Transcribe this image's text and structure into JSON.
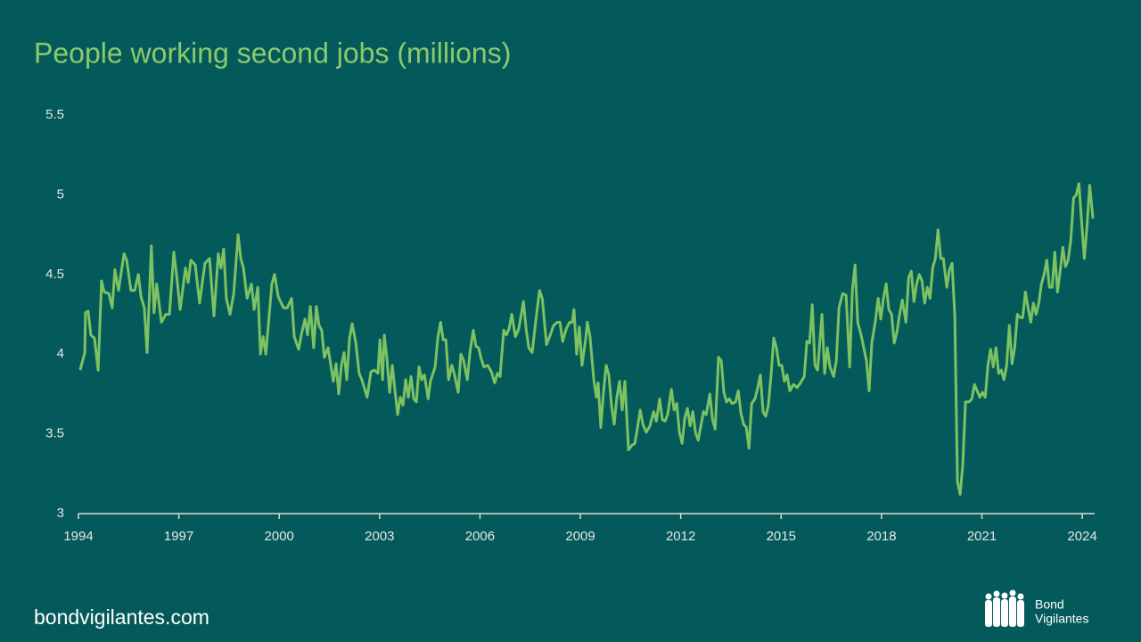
{
  "chart_data": {
    "type": "line",
    "title": "People working second jobs (millions)",
    "x": [
      1994.05,
      1994.19,
      1994.21,
      1994.29,
      1994.37,
      1994.48,
      1994.59,
      1994.69,
      1994.77,
      1994.91,
      1995.01,
      1995.09,
      1995.2,
      1995.36,
      1995.44,
      1995.57,
      1995.68,
      1995.79,
      1995.87,
      1995.97,
      1996.05,
      1996.18,
      1996.26,
      1996.34,
      1996.48,
      1996.61,
      1996.72,
      1996.85,
      1996.93,
      1997.04,
      1997.2,
      1997.28,
      1997.36,
      1997.49,
      1997.62,
      1997.78,
      1997.92,
      1998.05,
      1998.18,
      1998.26,
      1998.34,
      1998.42,
      1998.53,
      1998.64,
      1998.77,
      1998.85,
      1998.93,
      1999.04,
      1999.17,
      1999.25,
      1999.36,
      1999.44,
      1999.52,
      1999.6,
      1999.78,
      1999.86,
      1999.97,
      2000.13,
      2000.24,
      2000.37,
      2000.45,
      2000.58,
      2000.66,
      2000.77,
      2000.85,
      2000.93,
      2001.03,
      2001.11,
      2001.19,
      2001.27,
      2001.35,
      2001.46,
      2001.62,
      2001.7,
      2001.78,
      2001.86,
      2001.94,
      2002.02,
      2002.1,
      2002.18,
      2002.29,
      2002.39,
      2002.47,
      2002.63,
      2002.74,
      2002.85,
      2002.95,
      2003.01,
      2003.09,
      2003.14,
      2003.22,
      2003.3,
      2003.38,
      2003.46,
      2003.54,
      2003.62,
      2003.7,
      2003.78,
      2003.86,
      2003.94,
      2004.02,
      2004.1,
      2004.18,
      2004.26,
      2004.34,
      2004.45,
      2004.52,
      2004.66,
      2004.74,
      2004.82,
      2004.9,
      2004.98,
      2005.06,
      2005.16,
      2005.24,
      2005.35,
      2005.43,
      2005.51,
      2005.62,
      2005.7,
      2005.8,
      2005.88,
      2005.96,
      2006.04,
      2006.12,
      2006.23,
      2006.34,
      2006.44,
      2006.52,
      2006.6,
      2006.71,
      2006.79,
      2006.87,
      2006.95,
      2007.06,
      2007.16,
      2007.3,
      2007.38,
      2007.46,
      2007.56,
      2007.67,
      2007.78,
      2007.86,
      2007.99,
      2008.1,
      2008.2,
      2008.31,
      2008.39,
      2008.47,
      2008.58,
      2008.68,
      2008.76,
      2008.81,
      2008.89,
      2008.97,
      2009.05,
      2009.16,
      2009.21,
      2009.29,
      2009.4,
      2009.48,
      2009.53,
      2009.61,
      2009.69,
      2009.77,
      2009.85,
      2009.93,
      2010.01,
      2010.09,
      2010.17,
      2010.25,
      2010.33,
      2010.44,
      2010.55,
      2010.63,
      2010.71,
      2010.79,
      2010.87,
      2010.97,
      2011.08,
      2011.19,
      2011.27,
      2011.37,
      2011.45,
      2011.53,
      2011.61,
      2011.72,
      2011.8,
      2011.88,
      2011.96,
      2012.04,
      2012.12,
      2012.2,
      2012.28,
      2012.36,
      2012.44,
      2012.52,
      2012.6,
      2012.68,
      2012.76,
      2012.87,
      2012.95,
      2013.03,
      2013.13,
      2013.21,
      2013.29,
      2013.37,
      2013.45,
      2013.53,
      2013.64,
      2013.72,
      2013.8,
      2013.88,
      2013.96,
      2014.04,
      2014.12,
      2014.22,
      2014.3,
      2014.38,
      2014.46,
      2014.54,
      2014.62,
      2014.7,
      2014.78,
      2014.86,
      2014.94,
      2015.02,
      2015.1,
      2015.18,
      2015.26,
      2015.37,
      2015.48,
      2015.58,
      2015.69,
      2015.77,
      2015.85,
      2015.93,
      2016.01,
      2016.09,
      2016.22,
      2016.3,
      2016.38,
      2016.46,
      2016.57,
      2016.65,
      2016.73,
      2016.84,
      2016.94,
      2017.05,
      2017.13,
      2017.21,
      2017.29,
      2017.39,
      2017.47,
      2017.55,
      2017.63,
      2017.71,
      2017.82,
      2017.9,
      2017.98,
      2018.06,
      2018.14,
      2018.22,
      2018.3,
      2018.38,
      2018.46,
      2018.54,
      2018.62,
      2018.73,
      2018.81,
      2018.89,
      2018.97,
      2019.05,
      2019.13,
      2019.21,
      2019.29,
      2019.37,
      2019.45,
      2019.53,
      2019.61,
      2019.69,
      2019.77,
      2019.85,
      2019.95,
      2020.03,
      2020.11,
      2020.19,
      2020.27,
      2020.35,
      2020.43,
      2020.51,
      2020.62,
      2020.7,
      2020.78,
      2020.86,
      2020.94,
      2021.02,
      2021.1,
      2021.18,
      2021.26,
      2021.34,
      2021.42,
      2021.5,
      2021.58,
      2021.66,
      2021.74,
      2021.82,
      2021.9,
      2021.98,
      2022.06,
      2022.14,
      2022.22,
      2022.3,
      2022.38,
      2022.46,
      2022.54,
      2022.62,
      2022.7,
      2022.78,
      2022.86,
      2022.94,
      2023.02,
      2023.1,
      2023.18,
      2023.26,
      2023.34,
      2023.42,
      2023.5,
      2023.58,
      2023.66,
      2023.74,
      2023.82,
      2023.9,
      2023.98,
      2024.06,
      2024.14,
      2024.22,
      2024.32
    ],
    "series": [
      {
        "color": "#7cc262",
        "values": [
          3.9,
          4.01,
          4.26,
          4.27,
          4.12,
          4.1,
          3.9,
          4.46,
          4.39,
          4.38,
          4.29,
          4.53,
          4.4,
          4.63,
          4.59,
          4.4,
          4.4,
          4.5,
          4.36,
          4.29,
          4.01,
          4.68,
          4.26,
          4.44,
          4.2,
          4.25,
          4.25,
          4.64,
          4.5,
          4.28,
          4.54,
          4.45,
          4.59,
          4.56,
          4.32,
          4.57,
          4.6,
          4.24,
          4.63,
          4.54,
          4.66,
          4.35,
          4.25,
          4.38,
          4.75,
          4.6,
          4.54,
          4.35,
          4.44,
          4.28,
          4.42,
          4.0,
          4.11,
          4.0,
          4.44,
          4.5,
          4.36,
          4.29,
          4.29,
          4.35,
          4.11,
          4.03,
          4.12,
          4.22,
          4.12,
          4.3,
          4.04,
          4.3,
          4.18,
          4.15,
          3.98,
          4.04,
          3.83,
          3.94,
          3.75,
          3.93,
          4.01,
          3.84,
          4.1,
          4.19,
          4.07,
          3.88,
          3.84,
          3.73,
          3.89,
          3.9,
          3.88,
          4.09,
          3.84,
          4.12,
          3.97,
          3.76,
          3.93,
          3.77,
          3.62,
          3.73,
          3.68,
          3.84,
          3.73,
          3.86,
          3.72,
          3.7,
          3.92,
          3.84,
          3.87,
          3.72,
          3.83,
          3.92,
          4.1,
          4.2,
          4.09,
          4.09,
          3.84,
          3.93,
          3.87,
          3.76,
          4.0,
          3.96,
          3.84,
          4.01,
          4.15,
          4.05,
          4.04,
          3.97,
          3.92,
          3.93,
          3.89,
          3.82,
          3.88,
          3.86,
          4.15,
          4.12,
          4.16,
          4.25,
          4.11,
          4.16,
          4.33,
          4.16,
          4.04,
          4.01,
          4.21,
          4.4,
          4.35,
          4.06,
          4.12,
          4.18,
          4.2,
          4.2,
          4.08,
          4.16,
          4.2,
          4.2,
          4.28,
          4.0,
          4.17,
          3.93,
          4.1,
          4.2,
          4.11,
          3.84,
          3.73,
          3.82,
          3.54,
          3.76,
          3.93,
          3.87,
          3.68,
          3.56,
          3.73,
          3.83,
          3.65,
          3.83,
          3.4,
          3.43,
          3.44,
          3.54,
          3.65,
          3.56,
          3.51,
          3.55,
          3.64,
          3.58,
          3.72,
          3.59,
          3.58,
          3.62,
          3.78,
          3.65,
          3.69,
          3.51,
          3.44,
          3.6,
          3.66,
          3.55,
          3.64,
          3.51,
          3.46,
          3.55,
          3.64,
          3.62,
          3.75,
          3.59,
          3.53,
          3.98,
          3.96,
          3.76,
          3.7,
          3.72,
          3.69,
          3.7,
          3.77,
          3.63,
          3.56,
          3.54,
          3.41,
          3.69,
          3.72,
          3.79,
          3.87,
          3.64,
          3.61,
          3.68,
          3.87,
          4.1,
          4.04,
          3.93,
          3.93,
          3.83,
          3.87,
          3.77,
          3.81,
          3.79,
          3.82,
          3.86,
          4.08,
          4.07,
          4.31,
          3.93,
          3.9,
          4.25,
          3.88,
          4.04,
          3.92,
          3.86,
          3.96,
          4.29,
          4.38,
          4.37,
          3.92,
          4.4,
          4.56,
          4.2,
          4.12,
          4.04,
          3.96,
          3.77,
          4.07,
          4.21,
          4.35,
          4.22,
          4.35,
          4.44,
          4.28,
          4.25,
          4.07,
          4.14,
          4.25,
          4.34,
          4.2,
          4.48,
          4.52,
          4.33,
          4.44,
          4.5,
          4.46,
          4.32,
          4.42,
          4.35,
          4.54,
          4.6,
          4.78,
          4.6,
          4.6,
          4.42,
          4.53,
          4.57,
          4.24,
          3.2,
          3.12,
          3.31,
          3.7,
          3.7,
          3.72,
          3.81,
          3.77,
          3.73,
          3.76,
          3.73,
          3.93,
          4.03,
          3.92,
          4.04,
          3.88,
          3.9,
          3.84,
          3.93,
          4.18,
          3.94,
          4.04,
          4.25,
          4.23,
          4.23,
          4.39,
          4.29,
          4.2,
          4.32,
          4.25,
          4.32,
          4.44,
          4.5,
          4.59,
          4.42,
          4.42,
          4.64,
          4.39,
          4.52,
          4.67,
          4.55,
          4.59,
          4.72,
          4.98,
          5.0,
          5.07,
          4.83,
          4.6,
          4.8,
          5.06,
          4.85
        ]
      }
    ],
    "xlim": [
      1994,
      2024.37
    ],
    "xticks": [
      1994,
      1997,
      2000,
      2003,
      2006,
      2009,
      2012,
      2015,
      2018,
      2021,
      2024
    ],
    "ylim": [
      3,
      5.5
    ],
    "yticks": [
      3,
      3.5,
      4,
      4.5,
      5,
      5.5
    ],
    "grid": false
  },
  "footer": {
    "url": "bondvigilantes.com",
    "logo": [
      "Bond",
      "Vigilantes"
    ]
  }
}
